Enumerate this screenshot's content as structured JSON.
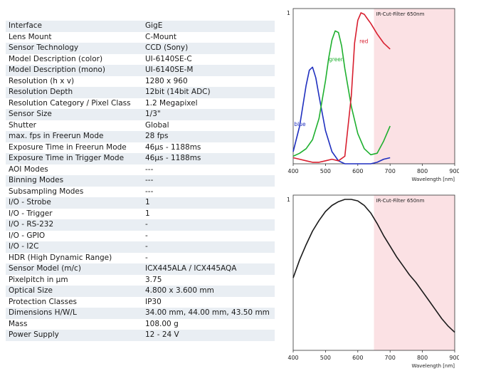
{
  "specs": [
    {
      "label": "Interface",
      "value": "GigE"
    },
    {
      "label": "Lens Mount",
      "value": "C-Mount"
    },
    {
      "label": "Sensor Technology",
      "value": "CCD (Sony)"
    },
    {
      "label": "Model Description (color)",
      "value": "UI-6140SE-C"
    },
    {
      "label": "Model Description (mono)",
      "value": "UI-6140SE-M"
    },
    {
      "label": "Resolution (h x v)",
      "value": "1280 x 960"
    },
    {
      "label": "Resolution Depth",
      "value": "12bit (14bit ADC)"
    },
    {
      "label": "Resolution Category / Pixel Class",
      "value": "1.2 Megapixel"
    },
    {
      "label": "Sensor Size",
      "value": "1/3\""
    },
    {
      "label": "Shutter",
      "value": "Global"
    },
    {
      "label": "max. fps in Freerun Mode",
      "value": "28 fps"
    },
    {
      "label": "Exposure Time in Freerun Mode",
      "value": "46µs - 1188ms"
    },
    {
      "label": "Exposure Time in Trigger Mode",
      "value": "46µs - 1188ms"
    },
    {
      "label": "AOI Modes",
      "value": "---"
    },
    {
      "label": "Binning Modes",
      "value": "---"
    },
    {
      "label": "Subsampling Modes",
      "value": "---"
    },
    {
      "label": "I/O - Strobe",
      "value": "1"
    },
    {
      "label": "I/O - Trigger",
      "value": "1"
    },
    {
      "label": "I/O - RS-232",
      "value": "-"
    },
    {
      "label": "I/O - GPIO",
      "value": "-"
    },
    {
      "label": "I/O - I2C",
      "value": "-"
    },
    {
      "label": "HDR (High Dynamic Range)",
      "value": "-"
    },
    {
      "label": "Sensor Model (m/c)",
      "value": "ICX445ALA / ICX445AQA"
    },
    {
      "label": "Pixelpitch in µm",
      "value": "3.75"
    },
    {
      "label": "Optical Size",
      "value": "4.800 x 3.600 mm"
    },
    {
      "label": "Protection Classes",
      "value": "IP30"
    },
    {
      "label": "Dimensions H/W/L",
      "value": "34.00 mm, 44.00 mm, 43.50 mm"
    },
    {
      "label": "Mass",
      "value": "108.00 g"
    },
    {
      "label": "Power Supply",
      "value": "12 - 24 V"
    }
  ],
  "chart_data": [
    {
      "type": "line",
      "title": "",
      "xlabel": "Wavelength [nm]",
      "ylabel": "",
      "xlim": [
        400,
        900
      ],
      "ylim": [
        0,
        1
      ],
      "xticks": [
        "400",
        "500",
        "600",
        "700",
        "800",
        "900"
      ],
      "yticks": [
        "1"
      ],
      "annotation": "IR-Cut-Filter 650nm",
      "ir_cut_range": [
        650,
        900
      ],
      "ir_color": "#fbe1e4",
      "series": [
        {
          "name": "blue",
          "color": "#1f2fbf",
          "x": [
            400,
            420,
            440,
            450,
            460,
            470,
            480,
            500,
            520,
            540,
            560,
            580,
            600,
            620,
            640,
            660,
            680,
            700
          ],
          "y": [
            0.08,
            0.25,
            0.52,
            0.62,
            0.64,
            0.57,
            0.45,
            0.22,
            0.08,
            0.02,
            0.0,
            0.0,
            0.0,
            0.0,
            0.0,
            0.01,
            0.03,
            0.04
          ]
        },
        {
          "name": "green",
          "color": "#1fb02f",
          "x": [
            400,
            420,
            440,
            460,
            480,
            500,
            510,
            520,
            530,
            540,
            550,
            560,
            580,
            600,
            620,
            640,
            660,
            680,
            700
          ],
          "y": [
            0.05,
            0.07,
            0.1,
            0.16,
            0.3,
            0.55,
            0.7,
            0.82,
            0.88,
            0.87,
            0.78,
            0.63,
            0.38,
            0.2,
            0.1,
            0.06,
            0.07,
            0.15,
            0.25
          ]
        },
        {
          "name": "red",
          "color": "#d81f2f",
          "x": [
            400,
            420,
            440,
            460,
            480,
            500,
            520,
            540,
            560,
            580,
            590,
            600,
            610,
            620,
            630,
            640,
            660,
            680,
            700
          ],
          "y": [
            0.04,
            0.03,
            0.02,
            0.01,
            0.01,
            0.02,
            0.03,
            0.02,
            0.05,
            0.45,
            0.8,
            0.95,
            1.0,
            0.99,
            0.96,
            0.93,
            0.86,
            0.8,
            0.76
          ]
        }
      ]
    },
    {
      "type": "line",
      "title": "",
      "xlabel": "Wavelength [nm]",
      "ylabel": "",
      "xlim": [
        400,
        900
      ],
      "ylim": [
        0,
        1
      ],
      "xticks": [
        "400",
        "500",
        "600",
        "700",
        "800",
        "900"
      ],
      "yticks": [
        "1"
      ],
      "annotation": "IR-Cut-Filter 650nm",
      "ir_cut_range": [
        650,
        900
      ],
      "ir_color": "#fbe1e4",
      "series": [
        {
          "name": "",
          "color": "#1a1a1a",
          "x": [
            400,
            420,
            440,
            460,
            480,
            500,
            520,
            540,
            560,
            580,
            600,
            620,
            640,
            660,
            680,
            700,
            720,
            740,
            760,
            780,
            800,
            820,
            840,
            860,
            880,
            900
          ],
          "y": [
            0.48,
            0.6,
            0.7,
            0.79,
            0.86,
            0.92,
            0.96,
            0.985,
            1.0,
            1.0,
            0.99,
            0.96,
            0.91,
            0.84,
            0.76,
            0.69,
            0.62,
            0.56,
            0.5,
            0.45,
            0.39,
            0.33,
            0.27,
            0.21,
            0.16,
            0.12
          ]
        }
      ]
    }
  ]
}
